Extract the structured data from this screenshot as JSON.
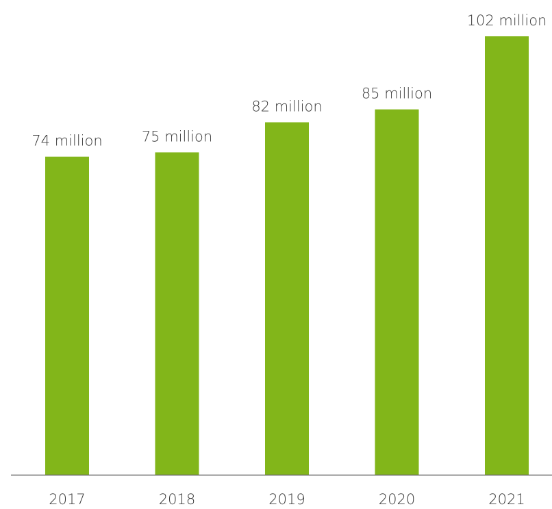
{
  "chart_data": {
    "type": "bar",
    "categories": [
      "2017",
      "2018",
      "2019",
      "2020",
      "2021"
    ],
    "values": [
      74,
      75,
      82,
      85,
      102
    ],
    "value_labels": [
      "74 million",
      "75 million",
      "82 million",
      "85 million",
      "102 million"
    ],
    "title": "",
    "xlabel": "",
    "ylabel": "",
    "ylim": [
      0,
      102
    ],
    "grid": false,
    "legend": "none",
    "bar_color": "#82b61a",
    "axis_color": "#6b6b6b",
    "text_color": "#3a3a3a"
  }
}
